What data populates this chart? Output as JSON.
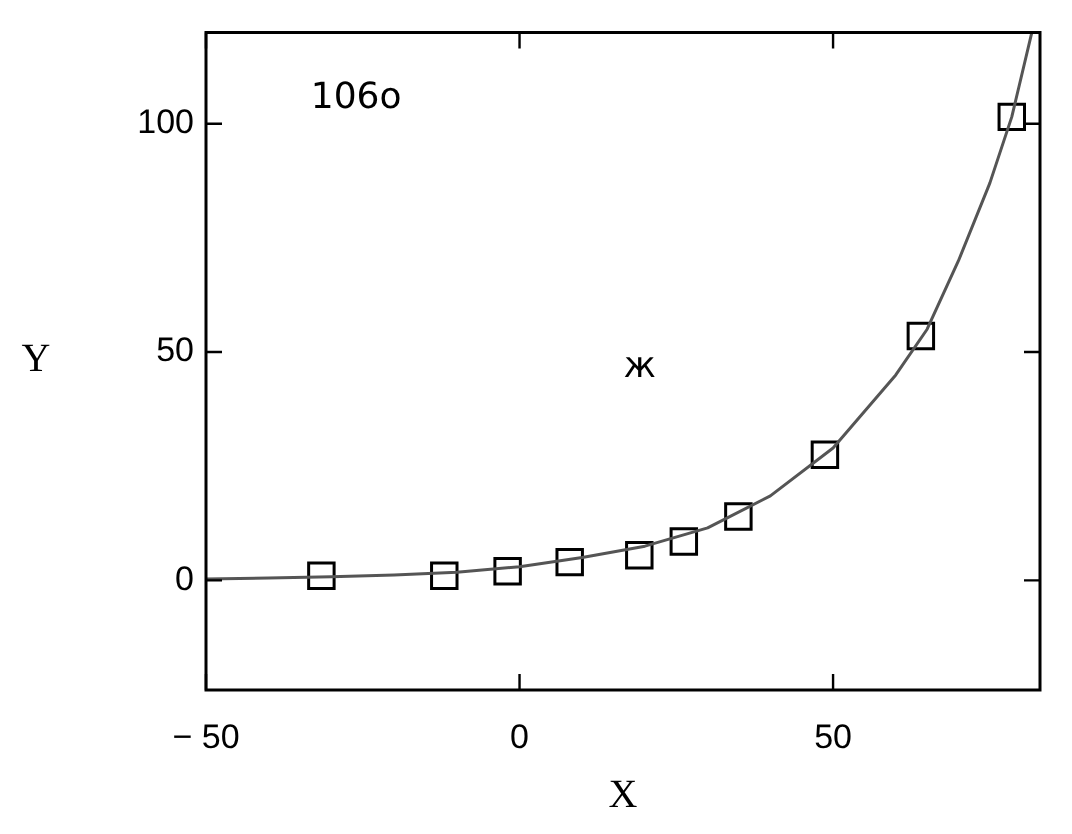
{
  "chart_data": {
    "type": "scatter",
    "xlabel": "X",
    "ylabel": "Y",
    "annotations": [
      "106o",
      "ж"
    ],
    "xlim": [
      -50,
      83
    ],
    "xticks": [
      {
        "value": -50,
        "label": "− 50"
      },
      0,
      50
    ],
    "ylim": [
      -24,
      120
    ],
    "yticks": [
      0,
      50,
      100
    ],
    "grid": false,
    "legend": false,
    "series": [
      {
        "type": "line",
        "color": "#555555",
        "marker": "none",
        "line_style": "solid",
        "x": [
          -50,
          -40,
          -30,
          -20,
          -10,
          0,
          10,
          20,
          30,
          40,
          50,
          60,
          65,
          70,
          75,
          78.5,
          81.7
        ],
        "values": [
          0.3,
          0.5,
          0.8,
          1.2,
          1.8,
          3,
          5,
          7.5,
          11.5,
          18.5,
          29,
          45,
          55,
          70,
          87,
          101.5,
          120
        ]
      },
      {
        "type": "scatter",
        "color": "#000000",
        "marker": "square",
        "x": [
          -31.6,
          -12,
          -1.9,
          8,
          19.1,
          26.2,
          34.9,
          48.7,
          64,
          78.5
        ],
        "values": [
          1,
          1,
          2,
          4,
          5.5,
          8.5,
          14,
          27.5,
          53.5,
          101.5
        ]
      }
    ]
  }
}
